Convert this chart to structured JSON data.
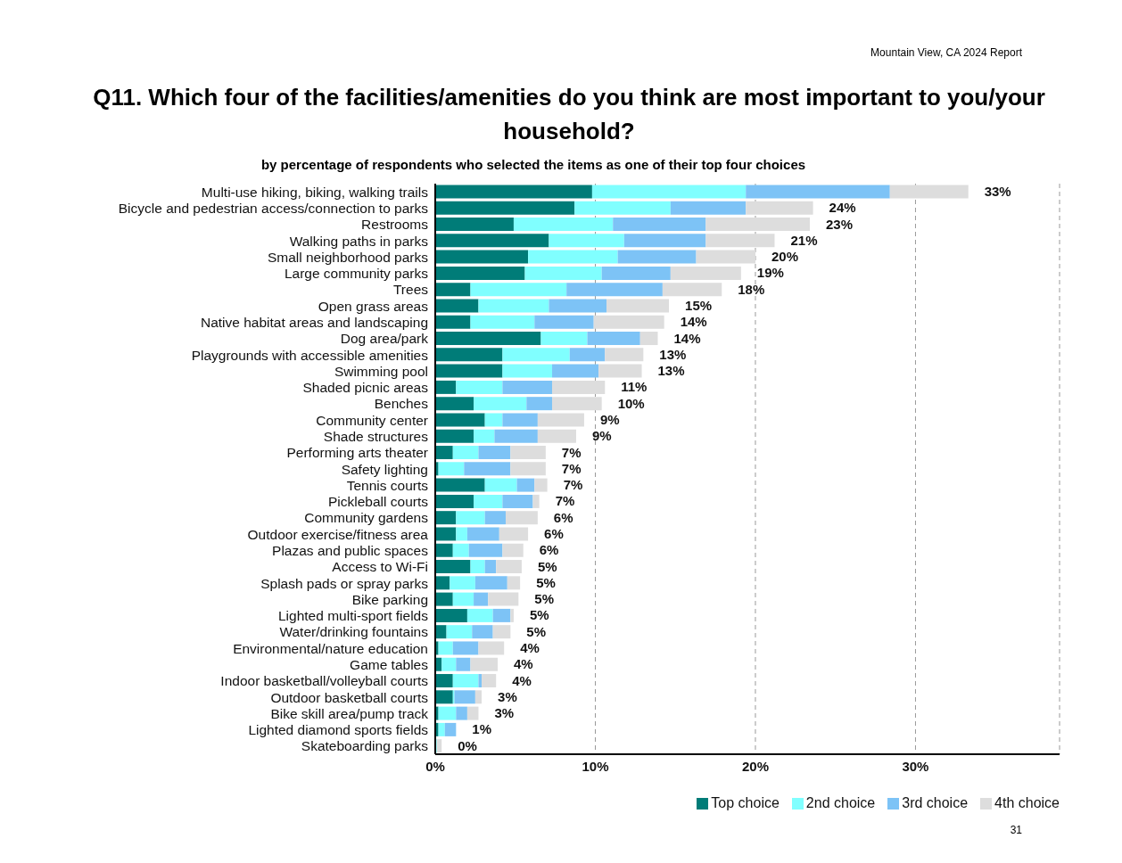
{
  "chart_data": {
    "type": "bar",
    "orientation": "horizontal",
    "stacked": true,
    "title": "Q11.  Which four of the facilities/amenities do you think are most important to you/your household?",
    "subtitle": "by percentage of respondents who selected the items as one of their top four choices",
    "categories": [
      "Multi-use hiking, biking, walking trails",
      "Bicycle and pedestrian access/connection to parks",
      "Restrooms",
      "Walking paths in parks",
      "Small neighborhood parks",
      "Large community parks",
      "Trees",
      "Open grass areas",
      "Native habitat areas and landscaping",
      "Dog area/park",
      "Playgrounds with accessible amenities",
      "Swimming pool",
      "Shaded picnic areas",
      "Benches",
      "Community center",
      "Shade structures",
      "Performing arts theater",
      "Safety lighting",
      "Tennis courts",
      "Pickleball courts",
      "Community gardens",
      "Outdoor exercise/fitness area",
      "Plazas and public spaces",
      "Access to Wi-Fi",
      "Splash pads or spray parks",
      "Bike parking",
      "Lighted multi-sport fields",
      "Water/drinking fountains",
      "Environmental/nature education",
      "Game tables",
      "Indoor basketball/volleyball courts",
      "Outdoor basketball courts",
      "Bike skill area/pump track",
      "Lighted diamond sports fields",
      "Skateboarding parks"
    ],
    "series": [
      {
        "name": "Top choice",
        "color": "#007c78",
        "values": [
          9.8,
          8.7,
          4.9,
          7.1,
          5.8,
          5.6,
          2.2,
          2.7,
          2.2,
          6.6,
          4.2,
          4.2,
          1.3,
          2.4,
          3.1,
          2.4,
          1.1,
          0.2,
          3.1,
          2.4,
          1.3,
          1.3,
          1.1,
          2.2,
          0.9,
          1.1,
          2.0,
          0.7,
          0.2,
          0.4,
          1.1,
          1.1,
          0.2,
          0.2,
          0
        ]
      },
      {
        "name": "2nd choice",
        "color": "#80ffff",
        "values": [
          9.6,
          6.0,
          6.2,
          4.7,
          5.6,
          4.8,
          6.0,
          4.4,
          4.0,
          2.9,
          4.2,
          3.1,
          2.9,
          3.3,
          1.1,
          1.3,
          1.6,
          1.6,
          2.0,
          1.8,
          1.8,
          0.7,
          1.0,
          0.9,
          1.6,
          1.3,
          1.6,
          1.6,
          0.9,
          0.9,
          1.6,
          0.1,
          1.1,
          0.4,
          0.1
        ]
      },
      {
        "name": "3rd choice",
        "color": "#7dc3f6",
        "values": [
          9.0,
          4.7,
          5.8,
          5.1,
          4.9,
          4.3,
          6.0,
          3.6,
          3.7,
          3.3,
          2.2,
          2.9,
          3.1,
          1.6,
          2.2,
          2.7,
          2.0,
          2.9,
          1.1,
          1.9,
          1.3,
          2.0,
          2.1,
          0.7,
          2.0,
          0.9,
          1.1,
          1.3,
          1.6,
          0.9,
          0.2,
          1.3,
          0.7,
          0.7,
          0
        ]
      },
      {
        "name": "4th choice",
        "color": "#dddddd",
        "values": [
          4.9,
          4.2,
          6.5,
          4.3,
          3.7,
          4.4,
          3.7,
          3.9,
          4.4,
          1.1,
          2.4,
          2.7,
          3.3,
          3.1,
          2.9,
          2.4,
          2.2,
          2.2,
          0.8,
          0.4,
          2.0,
          1.8,
          1.3,
          1.6,
          0.8,
          1.9,
          0.2,
          1.1,
          1.6,
          1.7,
          0.9,
          0.4,
          0.7,
          0,
          0.3
        ]
      }
    ],
    "totals": [
      "33%",
      "24%",
      "23%",
      "21%",
      "20%",
      "19%",
      "18%",
      "15%",
      "14%",
      "14%",
      "13%",
      "13%",
      "11%",
      "10%",
      "9%",
      "9%",
      "7%",
      "7%",
      "7%",
      "7%",
      "6%",
      "6%",
      "6%",
      "5%",
      "5%",
      "5%",
      "5%",
      "5%",
      "4%",
      "4%",
      "4%",
      "3%",
      "3%",
      "1%",
      "0%"
    ],
    "xlim": [
      0,
      39
    ],
    "xticks": [
      {
        "value": 0,
        "label": "0%"
      },
      {
        "value": 10,
        "label": "10%"
      },
      {
        "value": 20,
        "label": "20%"
      },
      {
        "value": 30,
        "label": "30%"
      }
    ],
    "grid": "x",
    "legend": "bottom right",
    "annotations": [
      "Mountain View, CA 2024 Report",
      "31"
    ]
  }
}
